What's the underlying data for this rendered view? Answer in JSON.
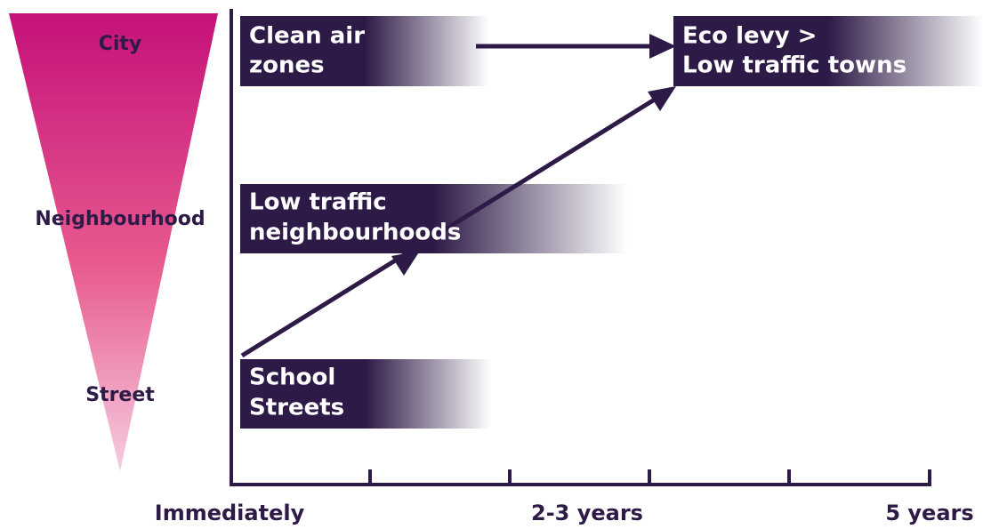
{
  "levels": [
    "City",
    "Neighbourhood",
    "Street"
  ],
  "boxes": [
    {
      "lines": [
        "Clean air",
        "zones"
      ]
    },
    {
      "lines": [
        "Eco levy >",
        "Low traffic towns"
      ]
    },
    {
      "lines": [
        "Low traffic",
        "neighbourhoods"
      ]
    },
    {
      "lines": [
        "School",
        "Streets"
      ]
    }
  ],
  "timeline": [
    "Immediately",
    "2-3 years",
    "5 years"
  ]
}
